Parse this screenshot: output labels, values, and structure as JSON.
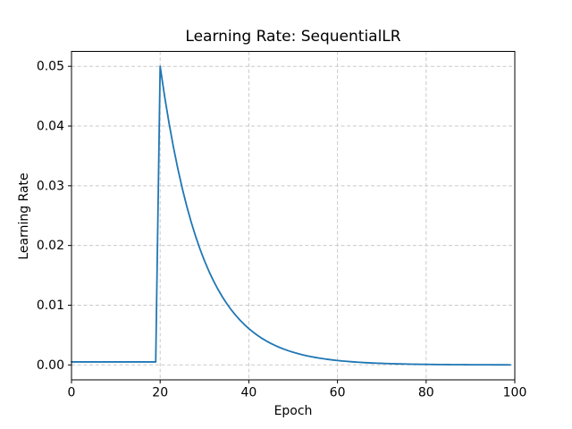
{
  "chart_data": {
    "type": "line",
    "title": "Learning Rate: SequentialLR",
    "xlabel": "Epoch",
    "ylabel": "Learning Rate",
    "xlim": [
      0,
      100
    ],
    "ylim": [
      -0.0025,
      0.0525
    ],
    "grid": true,
    "grid_style": "dashed",
    "legend": "none",
    "x_ticks": [
      0,
      20,
      40,
      60,
      80,
      100
    ],
    "x_tick_labels": [
      "0",
      "20",
      "40",
      "60",
      "80",
      "100"
    ],
    "y_ticks": [
      0.0,
      0.01,
      0.02,
      0.03,
      0.04,
      0.05
    ],
    "y_tick_labels": [
      "0.00",
      "0.01",
      "0.02",
      "0.03",
      "0.04",
      "0.05"
    ],
    "colors": {
      "line": "#1f77b4",
      "grid": "#c9c9c9",
      "spine": "#000000",
      "text": "#000000",
      "background": "#ffffff"
    },
    "series": [
      {
        "name": "learning-rate",
        "x": [
          0,
          1,
          2,
          3,
          4,
          5,
          6,
          7,
          8,
          9,
          10,
          11,
          12,
          13,
          14,
          15,
          16,
          17,
          18,
          19,
          20,
          21,
          22,
          23,
          24,
          25,
          26,
          27,
          28,
          29,
          30,
          31,
          32,
          33,
          34,
          35,
          36,
          37,
          38,
          39,
          40,
          41,
          42,
          43,
          44,
          45,
          46,
          47,
          48,
          49,
          50,
          51,
          52,
          53,
          54,
          55,
          56,
          57,
          58,
          59,
          60,
          61,
          62,
          63,
          64,
          65,
          66,
          67,
          68,
          69,
          70,
          71,
          72,
          73,
          74,
          75,
          76,
          77,
          78,
          79,
          80,
          81,
          82,
          83,
          84,
          85,
          86,
          87,
          88,
          89,
          90,
          91,
          92,
          93,
          94,
          95,
          96,
          97,
          98,
          99
        ],
        "y": [
          0.0005,
          0.0005,
          0.0005,
          0.0005,
          0.0005,
          0.0005,
          0.0005,
          0.0005,
          0.0005,
          0.0005,
          0.0005,
          0.0005,
          0.0005,
          0.0005,
          0.0005,
          0.0005,
          0.0005,
          0.0005,
          0.0005,
          0.0005,
          0.05,
          0.045,
          0.0405,
          0.03645,
          0.032805,
          0.029525,
          0.026572,
          0.023915,
          0.021523,
          0.019371,
          0.017434,
          0.015691,
          0.014121,
          0.012709,
          0.011438,
          0.010295,
          0.009265,
          0.008339,
          0.007505,
          0.006754,
          0.006079,
          0.005471,
          0.004924,
          0.004431,
          0.003988,
          0.003589,
          0.003231,
          0.002907,
          0.002617,
          0.002355,
          0.00212,
          0.001908,
          0.001717,
          0.001545,
          0.001391,
          0.001252,
          0.001126,
          0.001014,
          0.000912,
          0.000821,
          0.000739,
          0.000665,
          0.000599,
          0.000539,
          0.000485,
          0.000436,
          0.000393,
          0.000353,
          0.000318,
          0.000286,
          0.000258,
          0.000232,
          0.000209,
          0.000188,
          0.000169,
          0.000152,
          0.000137,
          0.000123,
          0.000111,
          0.0001,
          9e-05,
          8.1e-05,
          7.3e-05,
          6.6e-05,
          5.9e-05,
          5.3e-05,
          4.8e-05,
          4.3e-05,
          3.9e-05,
          3.5e-05,
          3.1e-05,
          2.8e-05,
          2.5e-05,
          2.3e-05,
          2.1e-05,
          1.9e-05,
          1.7e-05,
          1.5e-05,
          1.4e-05,
          1.2e-05
        ]
      }
    ]
  }
}
